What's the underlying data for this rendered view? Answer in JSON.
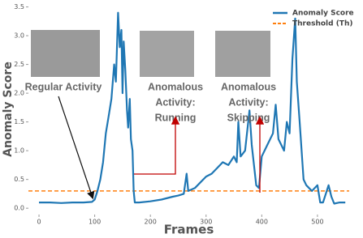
{
  "chart_data": {
    "type": "line",
    "xlabel": "Frames",
    "ylabel": "Anomaly Score",
    "xlim": [
      -19,
      557
    ],
    "ylim": [
      -0.11,
      3.55
    ],
    "xticks": [
      0,
      100,
      200,
      300,
      400,
      500
    ],
    "yticks": [
      {
        "value": 0,
        "label": "0.0"
      },
      {
        "value": 0.5,
        "label": "0.5"
      },
      {
        "value": 1,
        "label": "1.0"
      },
      {
        "value": 1.5,
        "label": "1.5"
      },
      {
        "value": 2,
        "label": "2.0"
      },
      {
        "value": 2.5,
        "label": "2.5"
      },
      {
        "value": 3,
        "label": "3.0"
      },
      {
        "value": 3.5,
        "label": "3.5"
      }
    ],
    "legend": "upper right",
    "series": [
      {
        "name": "Anomaly Score",
        "color": "#1f77b4",
        "x": [
          0,
          20,
          40,
          60,
          80,
          95,
          100,
          105,
          110,
          115,
          120,
          125,
          130,
          135,
          138,
          142,
          145,
          148,
          150,
          152,
          155,
          158,
          160,
          163,
          165,
          168,
          170,
          172,
          180,
          200,
          220,
          240,
          250,
          260,
          265,
          268,
          280,
          290,
          300,
          310,
          320,
          330,
          340,
          350,
          355,
          358,
          362,
          370,
          378,
          382,
          390,
          395,
          400,
          410,
          420,
          425,
          430,
          440,
          445,
          450,
          455,
          460,
          463,
          468,
          475,
          480,
          490,
          500,
          505,
          510,
          520,
          525,
          530,
          540,
          550
        ],
        "values": [
          0.1,
          0.1,
          0.09,
          0.1,
          0.1,
          0.11,
          0.15,
          0.3,
          0.5,
          0.8,
          1.3,
          1.6,
          1.9,
          2.5,
          2.2,
          3.4,
          2.8,
          3.1,
          2.0,
          2.9,
          2.4,
          1.7,
          1.4,
          1.9,
          1.2,
          1.0,
          0.3,
          0.1,
          0.1,
          0.12,
          0.15,
          0.2,
          0.22,
          0.25,
          0.6,
          0.3,
          0.35,
          0.45,
          0.55,
          0.6,
          0.7,
          0.8,
          0.75,
          0.9,
          0.8,
          1.5,
          0.9,
          1.0,
          1.7,
          1.1,
          0.4,
          0.35,
          0.9,
          1.1,
          1.3,
          1.8,
          1.2,
          1.0,
          1.5,
          1.3,
          2.6,
          3.3,
          2.2,
          1.5,
          0.5,
          0.4,
          0.3,
          0.4,
          0.1,
          0.1,
          0.4,
          0.2,
          0.08,
          0.1,
          0.1
        ]
      }
    ],
    "threshold": {
      "name": "Threshold (Th)",
      "color": "#ff7f0e",
      "value": 0.3
    },
    "annotations": [
      {
        "lines": [
          "Regular Activity"
        ]
      },
      {
        "lines": [
          "Anomalous",
          "Activity:",
          "Running"
        ]
      },
      {
        "lines": [
          "Anomalous",
          "Activity:",
          "Skipping"
        ]
      }
    ]
  }
}
